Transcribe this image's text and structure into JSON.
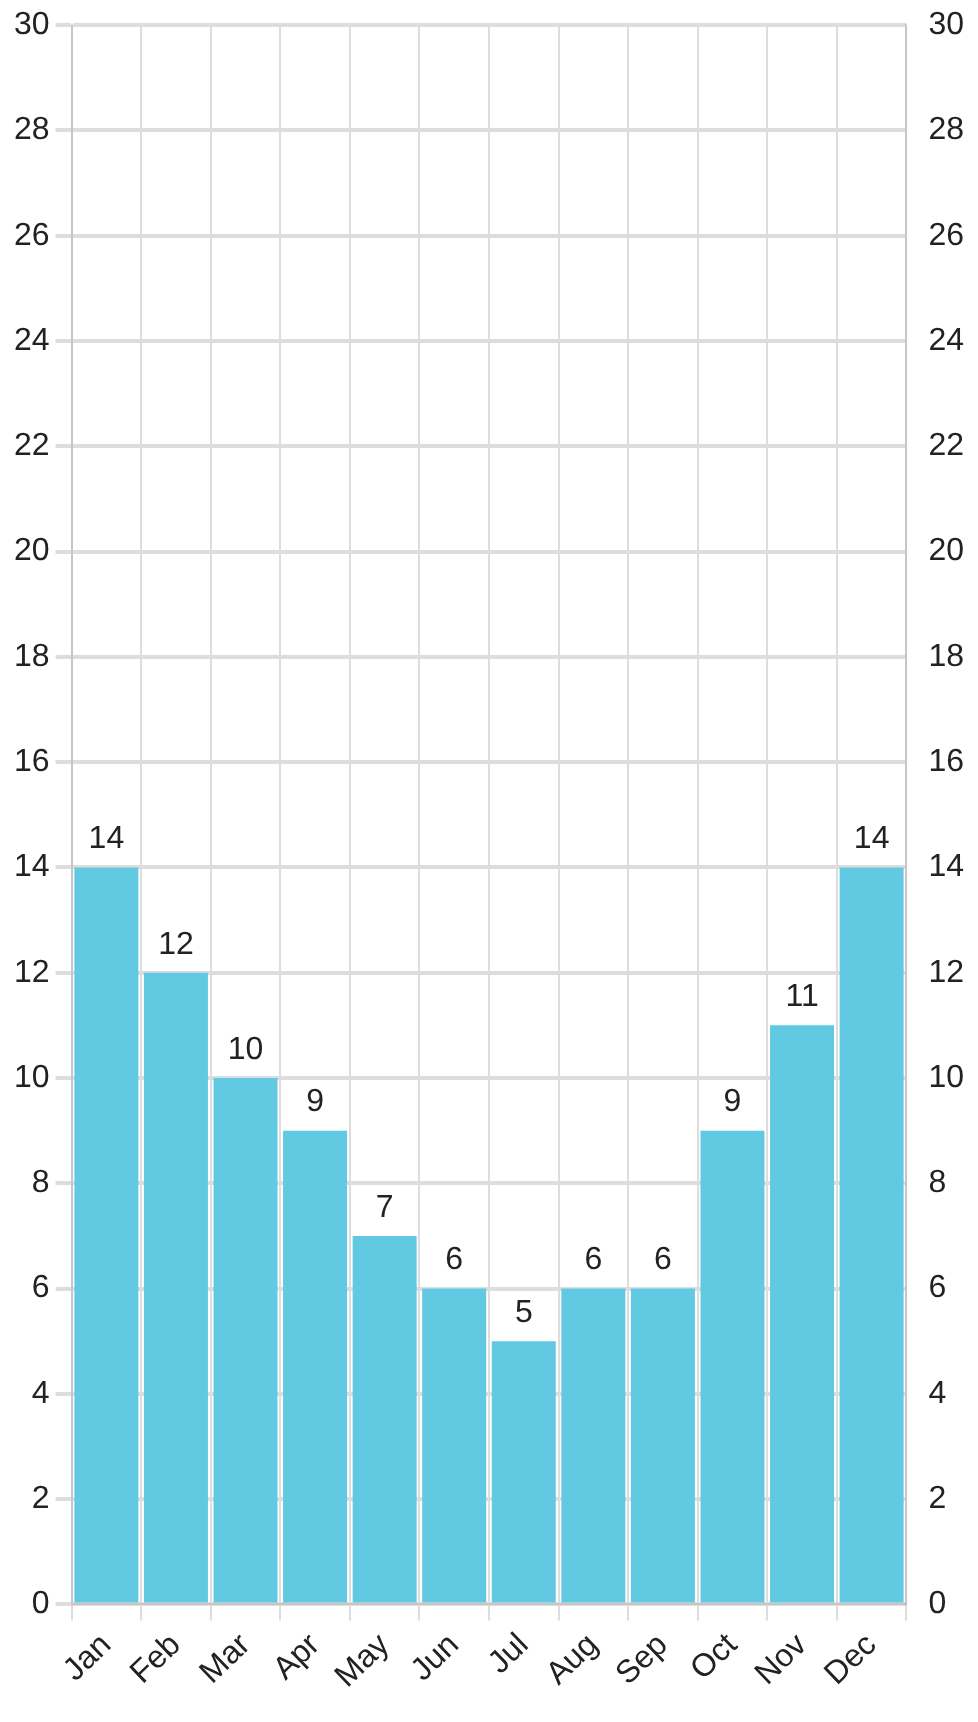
{
  "chart_data": {
    "type": "bar",
    "categories": [
      "Jan",
      "Feb",
      "Mar",
      "Apr",
      "May",
      "Jun",
      "Jul",
      "Aug",
      "Sep",
      "Oct",
      "Nov",
      "Dec"
    ],
    "values": [
      14,
      12,
      10,
      9,
      7,
      6,
      5,
      6,
      6,
      9,
      11,
      14
    ],
    "color": "#62c9e3",
    "ylim": [
      0,
      30
    ],
    "yticks": [
      0,
      2,
      4,
      6,
      8,
      10,
      12,
      14,
      16,
      18,
      20,
      22,
      24,
      26,
      28,
      30
    ],
    "y2lim": [
      0,
      30
    ],
    "y2ticks": [
      0,
      2,
      4,
      6,
      8,
      10,
      12,
      14,
      16,
      18,
      20,
      22,
      24,
      26,
      28,
      30
    ],
    "grid": true,
    "legend": false,
    "data_labels": true
  }
}
